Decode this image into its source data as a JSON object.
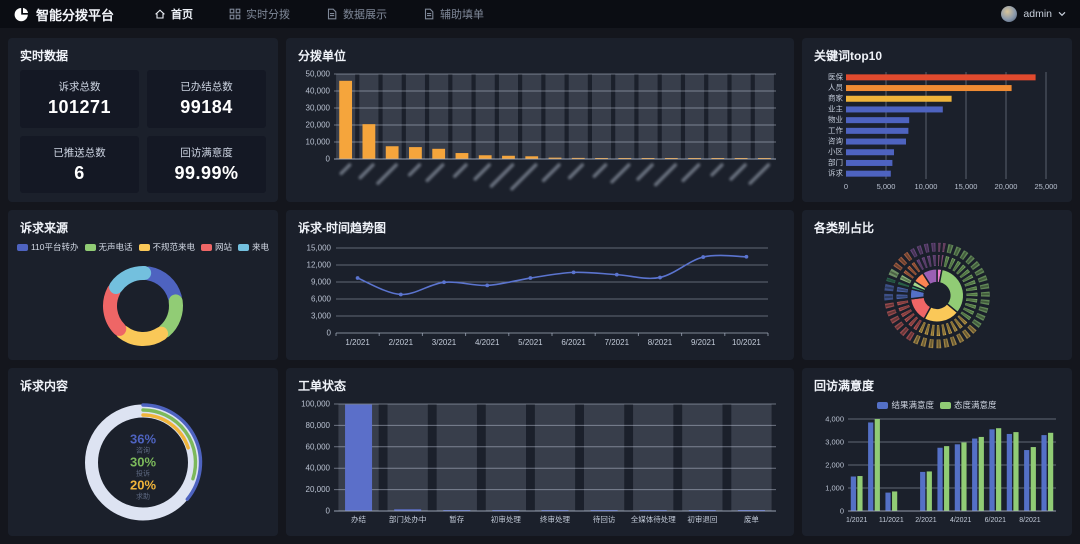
{
  "app": {
    "title": "智能分拨平台",
    "nav": [
      {
        "label": "首页",
        "icon": "home-icon",
        "active": true
      },
      {
        "label": "实时分拨",
        "icon": "grid-icon",
        "active": false
      },
      {
        "label": "数据展示",
        "icon": "document-icon",
        "active": false
      },
      {
        "label": "辅助填单",
        "icon": "document-icon",
        "active": false
      }
    ],
    "user": {
      "name": "admin"
    }
  },
  "colors": {
    "page_bg": "#14161d",
    "nav_bg": "#0b0d13",
    "panel_bg": "#1b202b",
    "card_bg": "#141824",
    "axis_text": "#b9c1d0",
    "grid_line": "rgba(210,218,234,0.45)",
    "band_fill": "rgba(158,170,192,0.22)"
  },
  "panels": {
    "realtime": {
      "title": "实时数据",
      "stats": [
        {
          "label": "诉求总数",
          "value": "101271"
        },
        {
          "label": "已办结总数",
          "value": "99184"
        },
        {
          "label": "已推送总数",
          "value": "6"
        },
        {
          "label": "回访满意度",
          "value": "99.99%"
        }
      ]
    },
    "dispatch_units": {
      "title": "分拨单位"
    },
    "keywords": {
      "title": "关键词top10"
    },
    "sources": {
      "title": "诉求来源"
    },
    "trend": {
      "title": "诉求-时间趋势图"
    },
    "categories": {
      "title": "各类别占比"
    },
    "content": {
      "title": "诉求内容"
    },
    "status": {
      "title": "工单状态"
    },
    "satisfaction": {
      "title": "回访满意度"
    }
  },
  "chart_data": [
    {
      "id": "dispatch_units",
      "type": "bar",
      "title": "分拨单位",
      "ylim": [
        0,
        50000
      ],
      "ytick_step": 10000,
      "bar_color": "#f5a53c",
      "values": [
        46000,
        20500,
        7500,
        7000,
        6000,
        3500,
        2200,
        1900,
        1600,
        800,
        650,
        550,
        480,
        420,
        360,
        300,
        260,
        210,
        160
      ],
      "xlabels_redacted": true,
      "blur_label_lengths": [
        12,
        18,
        26,
        14,
        22,
        16,
        20,
        30,
        34,
        22,
        18,
        16,
        24,
        20,
        28,
        22,
        14,
        20,
        26
      ],
      "note": "x-axis unit names are blurred/illegible in the source image"
    },
    {
      "id": "keywords_top10",
      "type": "bar-horizontal",
      "title": "关键词top10",
      "xlim": [
        0,
        25000
      ],
      "xtick_step": 5000,
      "categories": [
        "医保",
        "人员",
        "商家",
        "业主",
        "物业",
        "工作",
        "咨询",
        "小区",
        "部门",
        "诉求"
      ],
      "values": [
        23700,
        20700,
        13200,
        12100,
        7900,
        7800,
        7500,
        6000,
        5800,
        5600
      ],
      "bar_colors": [
        "#e04a2e",
        "#ef8b33",
        "#f0b43a",
        "#4e63c0",
        "#4e63c0",
        "#4e63c0",
        "#4e63c0",
        "#4e63c0",
        "#4e63c0",
        "#4e63c0"
      ]
    },
    {
      "id": "complaint_sources",
      "type": "pie",
      "title": "诉求来源",
      "legend": [
        "110平台转办",
        "无声电话",
        "不规范来电",
        "网站",
        "来电"
      ],
      "values": [
        20,
        18,
        22,
        22,
        18
      ],
      "colors": [
        "#4e63c0",
        "#91cc75",
        "#fac858",
        "#ee6666",
        "#73c0de"
      ]
    },
    {
      "id": "complaint_trend",
      "type": "line",
      "title": "诉求-时间趋势图",
      "categories": [
        "1/2021",
        "2/2021",
        "3/2021",
        "4/2021",
        "5/2021",
        "6/2021",
        "7/2021",
        "8/2021",
        "9/2021",
        "10/2021"
      ],
      "values": [
        9700,
        6800,
        8950,
        8400,
        9700,
        10700,
        10300,
        9800,
        13400,
        13450
      ],
      "ylim": [
        0,
        15000
      ],
      "ytick_step": 3000,
      "line_color": "#5b74cf"
    },
    {
      "id": "category_share",
      "type": "sunburst",
      "title": "各类别占比",
      "labels_redacted": true,
      "note": "three-level sunburst, slice labels illegible in source",
      "segments": [
        {
          "color": "#ea7ccc",
          "value": 3,
          "children": 2
        },
        {
          "color": "#91cc75",
          "value": 33,
          "children": 13
        },
        {
          "color": "#fac858",
          "value": 22,
          "children": 9
        },
        {
          "color": "#ee6666",
          "value": 15,
          "children": 6
        },
        {
          "color": "#5470c6",
          "value": 6,
          "children": 2
        },
        {
          "color": "#3ba272",
          "value": 2,
          "children": 1
        },
        {
          "color": "#a5d98b",
          "value": 3,
          "children": 1
        },
        {
          "color": "#fc8452",
          "value": 7,
          "children": 3
        },
        {
          "color": "#9a60b4",
          "value": 9,
          "children": 4
        }
      ]
    },
    {
      "id": "complaint_content",
      "type": "ring",
      "title": "诉求内容",
      "track_color": "#dde3f2",
      "rings": [
        {
          "label": "咨询",
          "percent": 36,
          "color": "#4e63c0"
        },
        {
          "label": "投诉",
          "percent": 30,
          "color": "#7cb95b"
        },
        {
          "label": "求助",
          "percent": 20,
          "color": "#f0b43a"
        }
      ]
    },
    {
      "id": "ticket_status",
      "type": "bar",
      "title": "工单状态",
      "ylim": [
        0,
        100000
      ],
      "ytick_step": 20000,
      "bar_color": "#5b6fc9",
      "categories": [
        "办结",
        "部门处办中",
        "暂存",
        "初审处理",
        "终审处理",
        "待回访",
        "全媒体待处理",
        "初审退回",
        "废单"
      ],
      "values": [
        99500,
        1600,
        900,
        350,
        300,
        250,
        200,
        150,
        100
      ]
    },
    {
      "id": "callback_satisfaction",
      "type": "grouped-bar",
      "title": "回访满意度",
      "categories": [
        "1/2021",
        "10/2021",
        "11/2021",
        "12/2021",
        "2/2021",
        "3/2021",
        "4/2021",
        "5/2021",
        "6/2021",
        "7/2021",
        "8/2021",
        "9/2021"
      ],
      "xlabel_every": 2,
      "ylim": [
        0,
        4000
      ],
      "ytick_step": 1000,
      "series": [
        {
          "name": "结果满意度",
          "color": "#5470c6",
          "values": [
            1500,
            3850,
            800,
            0,
            1700,
            2750,
            2900,
            3150,
            3550,
            3350,
            2650,
            3300
          ]
        },
        {
          "name": "态度满意度",
          "color": "#91cc75",
          "values": [
            1520,
            4000,
            850,
            0,
            1720,
            2820,
            2980,
            3220,
            3600,
            3430,
            2780,
            3400
          ]
        }
      ]
    }
  ]
}
